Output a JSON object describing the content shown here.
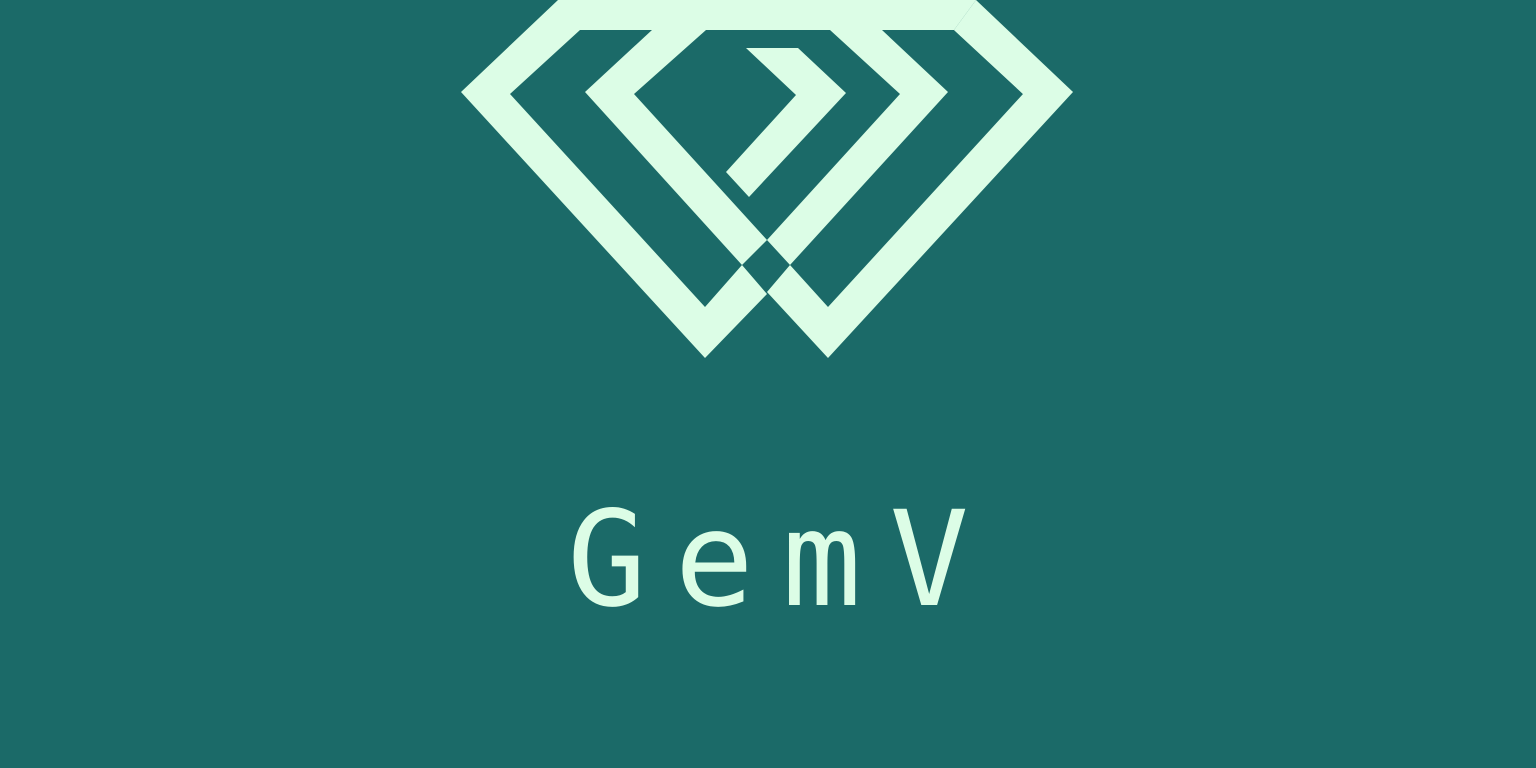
{
  "brand": {
    "wordmark": "GemV",
    "logo_icon": "diamond-gem-icon",
    "colors": {
      "background": "#1b6a68",
      "foreground": "#dcfde6"
    }
  }
}
